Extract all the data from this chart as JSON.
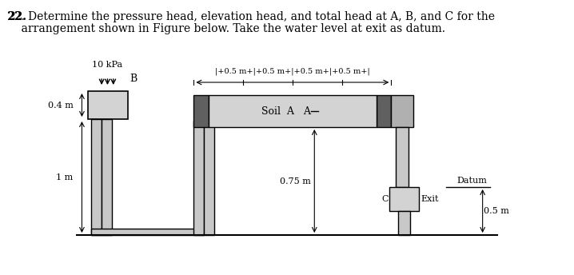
{
  "title_line1": "22. Determine the pressure head, elevation head, and total head at A, B, and C for the",
  "title_line2": "    arrangement shown in Figure below. Take the water level at exit as datum.",
  "bg_color": "#ffffff",
  "text_color": "#000000",
  "label_10kpa": "10 kPa",
  "label_B": "B",
  "label_04m": "0.4 m",
  "label_1m": "1 m",
  "label_075m": "0.75 m",
  "label_05m_dim": "0.5 m",
  "label_soil_a": "Soil  A",
  "label_c": "C",
  "label_exit": "Exit",
  "label_datum": "Datum",
  "dim_label": "|+0.5 m+|+0.5 m+|+0.5 m+|+0.5 m+|",
  "light_gray": "#d3d3d3",
  "medium_gray": "#a0a0a0",
  "dark_gray": "#606060",
  "box_gray": "#b0b0b0",
  "pipe_gray": "#c8c8c8"
}
